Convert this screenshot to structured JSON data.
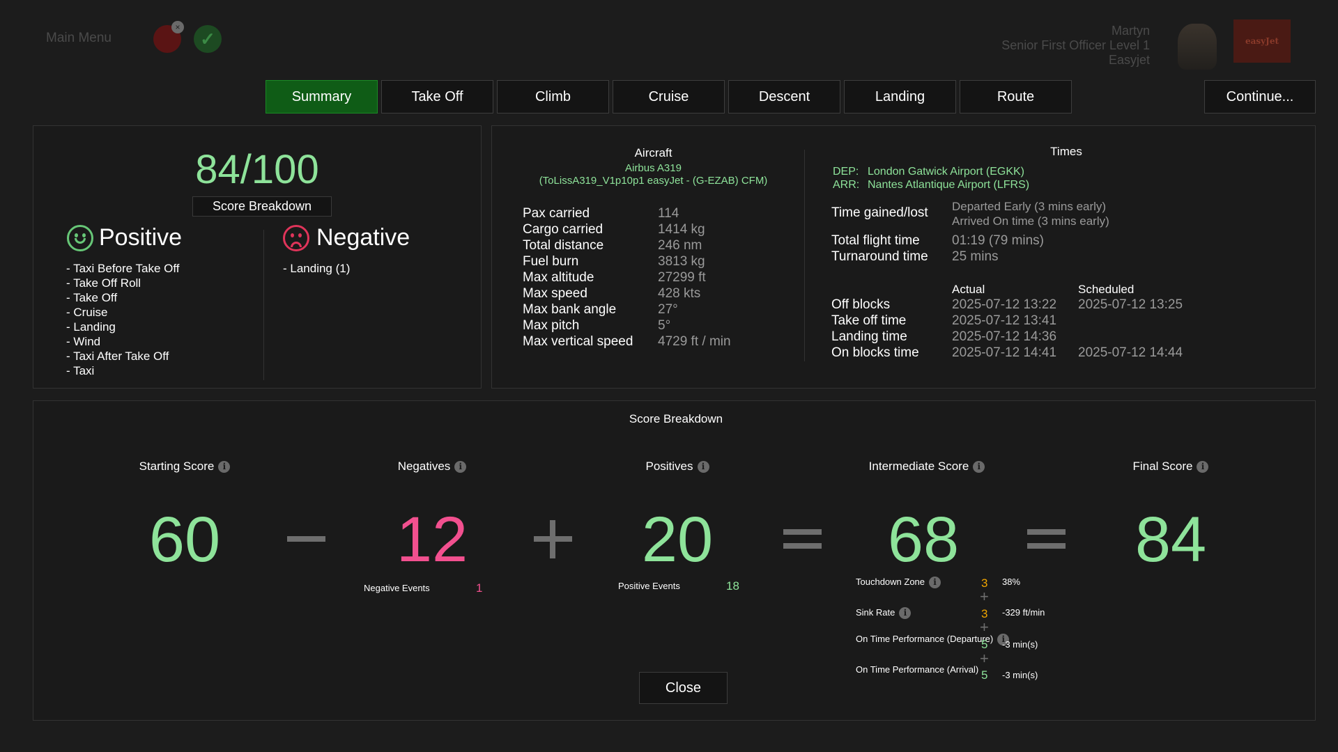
{
  "header": {
    "main_menu_label": "Main Menu",
    "user_name": "Martyn",
    "user_rank": "Senior First Officer Level 1",
    "user_airline": "Easyjet",
    "airline_logo_text": "easyJet"
  },
  "tabs": [
    "Summary",
    "Take Off",
    "Climb",
    "Cruise",
    "Descent",
    "Landing",
    "Route"
  ],
  "continue_label": "Continue...",
  "summary": {
    "score": "84/100",
    "score_breakdown_label": "Score Breakdown",
    "positive_heading": "Positive",
    "negative_heading": "Negative",
    "positives": [
      "- Taxi Before Take Off",
      "- Take Off Roll",
      "- Take Off",
      "- Cruise",
      "- Landing",
      "- Wind",
      "- Taxi After Take Off",
      "- Taxi"
    ],
    "negatives": [
      "- Landing (1)"
    ]
  },
  "aircraft": {
    "title": "Aircraft",
    "model": "Airbus A319",
    "livery": "(ToLissA319_V1p10p1 easyJet - (G-EZAB) CFM)",
    "stats": [
      {
        "label": "Pax carried",
        "value": "114"
      },
      {
        "label": "Cargo carried",
        "value": "1414 kg"
      },
      {
        "label": "Total distance",
        "value": "246 nm"
      },
      {
        "label": "Fuel burn",
        "value": "3813 kg"
      },
      {
        "label": "Max altitude",
        "value": "27299 ft"
      },
      {
        "label": "Max speed",
        "value": "428 kts"
      },
      {
        "label": "Max bank angle",
        "value": "27°"
      },
      {
        "label": "Max pitch",
        "value": "5°"
      },
      {
        "label": "Max vertical speed",
        "value": "4729 ft / min"
      }
    ]
  },
  "times": {
    "title": "Times",
    "dep_key": "DEP:",
    "dep": "London Gatwick Airport (EGKK)",
    "arr_key": "ARR:",
    "arr": "Nantes Atlantique Airport (LFRS)",
    "gained_label": "Time gained/lost",
    "gained_dep": "Departed Early (3 mins early)",
    "gained_arr": "Arrived On time (3 mins early)",
    "total_label": "Total flight time",
    "total_value": "01:19 (79 mins)",
    "turnaround_label": "Turnaround time",
    "turnaround_value": "25 mins",
    "actual_head": "Actual",
    "scheduled_head": "Scheduled",
    "rows": [
      {
        "label": "Off blocks",
        "actual": "2025-07-12 13:22",
        "scheduled": "2025-07-12 13:25"
      },
      {
        "label": "Take off time",
        "actual": "2025-07-12 13:41",
        "scheduled": ""
      },
      {
        "label": "Landing time",
        "actual": "2025-07-12 14:36",
        "scheduled": ""
      },
      {
        "label": "On blocks time",
        "actual": "2025-07-12 14:41",
        "scheduled": "2025-07-12 14:44"
      }
    ]
  },
  "breakdown": {
    "title": "Score Breakdown",
    "starting_label": "Starting Score",
    "starting_value": "60",
    "negatives_label": "Negatives",
    "negatives_value": "12",
    "negative_events_label": "Negative Events",
    "negative_events_value": "1",
    "positives_label": "Positives",
    "positives_value": "20",
    "positive_events_label": "Positive Events",
    "positive_events_value": "18",
    "intermediate_label": "Intermediate Score",
    "intermediate_value": "68",
    "final_label": "Final Score",
    "final_value": "84",
    "items": [
      {
        "label": "Touchdown Zone",
        "score": "3",
        "value": "38%"
      },
      {
        "label": "Sink Rate",
        "score": "3",
        "value": "-329 ft/min"
      },
      {
        "label": "On Time Performance (Departure)",
        "score": "5",
        "value": "-3 min(s)"
      },
      {
        "label": "On Time Performance (Arrival)",
        "score": "5",
        "value": "-3 min(s)"
      }
    ]
  },
  "close_label": "Close",
  "info_glyph": "i",
  "colors": {
    "green": "#8ee39a",
    "pink": "#f2508f",
    "orange": "#f0a500",
    "active_tab": "#0f5c16"
  }
}
